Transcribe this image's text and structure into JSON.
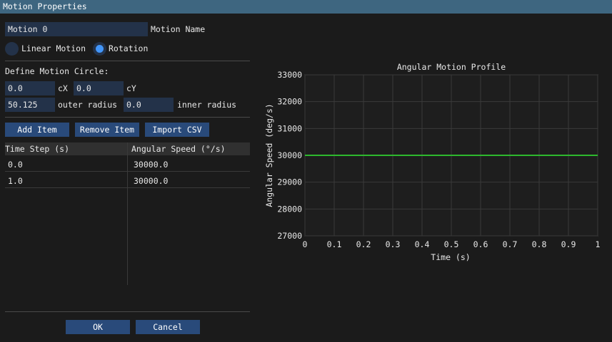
{
  "window": {
    "title": "Motion Properties"
  },
  "motion_name": {
    "value": "Motion 0",
    "label": "Motion Name"
  },
  "motion_type": {
    "options": [
      "Linear Motion",
      "Rotation"
    ],
    "selected": "Rotation"
  },
  "circle": {
    "heading": "Define Motion Circle:",
    "cx": {
      "value": "0.0",
      "label": "cX"
    },
    "cy": {
      "value": "0.0",
      "label": "cY"
    },
    "outer": {
      "value": "50.125",
      "label": "outer radius"
    },
    "inner": {
      "value": "0.0",
      "label": "inner radius"
    }
  },
  "buttons": {
    "add": "Add Item",
    "remove": "Remove Item",
    "import": "Import CSV",
    "ok": "OK",
    "cancel": "Cancel"
  },
  "table": {
    "headers": [
      "Time Step (s)",
      "Angular Speed (°/s)"
    ],
    "rows": [
      [
        "0.0",
        "30000.0"
      ],
      [
        "1.0",
        "30000.0"
      ]
    ]
  },
  "colors": {
    "accent": "#4296fa",
    "line": "#2eb82e",
    "titlebar": "#3e6680"
  },
  "chart_data": {
    "type": "line",
    "title": "Angular Motion Profile",
    "xlabel": "Time (s)",
    "ylabel": "Angular Speed (deg/s)",
    "xlim": [
      0,
      1
    ],
    "ylim": [
      27000,
      33000
    ],
    "xticks": [
      "0",
      "0.1",
      "0.2",
      "0.3",
      "0.4",
      "0.5",
      "0.6",
      "0.7",
      "0.8",
      "0.9",
      "1"
    ],
    "yticks": [
      "27000",
      "28000",
      "29000",
      "30000",
      "31000",
      "32000",
      "33000"
    ],
    "grid": true,
    "series": [
      {
        "x": [
          0,
          1
        ],
        "y": [
          30000,
          30000
        ]
      }
    ]
  }
}
